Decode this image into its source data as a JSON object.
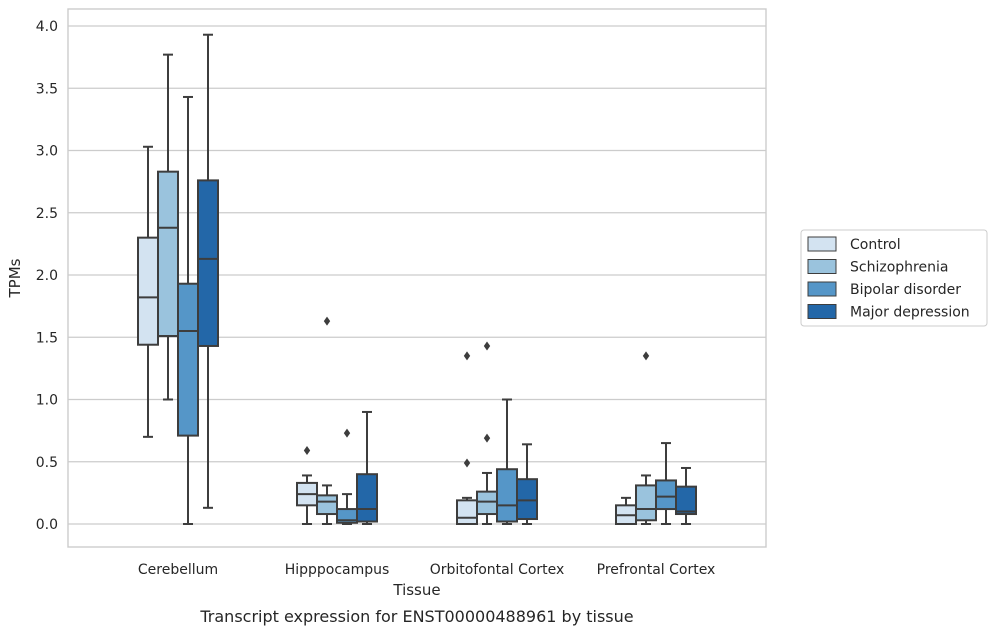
{
  "chart_data": {
    "type": "box",
    "title": "Transcript expression for ENST00000488961 by tissue",
    "xlabel": "Tissue",
    "ylabel": "TPMs",
    "ylim": [
      -0.19,
      4.12
    ],
    "yticks": [
      "0.0",
      "0.5",
      "1.0",
      "1.5",
      "2.0",
      "2.5",
      "3.0",
      "3.5",
      "4.0"
    ],
    "categories": [
      "Cerebellum",
      "Hipppocampus",
      "Orbitofontal Cortex",
      "Prefrontal Cortex"
    ],
    "grid": "horizontal",
    "legend_position": "right",
    "series": [
      {
        "name": "Control",
        "color": "#d3e3f1",
        "boxes": [
          {
            "min": 0.7,
            "q1": 1.44,
            "median": 1.82,
            "q3": 2.3,
            "max": 3.03,
            "outliers": []
          },
          {
            "min": 0.0,
            "q1": 0.15,
            "median": 0.24,
            "q3": 0.33,
            "max": 0.39,
            "outliers": [
              0.59
            ]
          },
          {
            "min": 0.0,
            "q1": 0.0,
            "median": 0.05,
            "q3": 0.19,
            "max": 0.21,
            "outliers": [
              0.49,
              1.35
            ]
          },
          {
            "min": 0.0,
            "q1": 0.0,
            "median": 0.07,
            "q3": 0.15,
            "max": 0.21,
            "outliers": []
          }
        ]
      },
      {
        "name": "Schizophrenia",
        "color": "#9ac3dd",
        "boxes": [
          {
            "min": 1.0,
            "q1": 1.51,
            "median": 2.38,
            "q3": 2.83,
            "max": 3.77,
            "outliers": []
          },
          {
            "min": 0.0,
            "q1": 0.08,
            "median": 0.18,
            "q3": 0.23,
            "max": 0.31,
            "outliers": [
              1.63
            ]
          },
          {
            "min": 0.0,
            "q1": 0.08,
            "median": 0.18,
            "q3": 0.26,
            "max": 0.41,
            "outliers": [
              0.69,
              1.43
            ]
          },
          {
            "min": 0.0,
            "q1": 0.03,
            "median": 0.12,
            "q3": 0.31,
            "max": 0.39,
            "outliers": [
              1.35
            ]
          }
        ]
      },
      {
        "name": "Bipolar disorder",
        "color": "#5596c8",
        "boxes": [
          {
            "min": 0.0,
            "q1": 0.71,
            "median": 1.55,
            "q3": 1.93,
            "max": 3.43,
            "outliers": []
          },
          {
            "min": 0.0,
            "q1": 0.01,
            "median": 0.03,
            "q3": 0.12,
            "max": 0.24,
            "outliers": [
              0.73
            ]
          },
          {
            "min": 0.0,
            "q1": 0.02,
            "median": 0.15,
            "q3": 0.44,
            "max": 1.0,
            "outliers": []
          },
          {
            "min": 0.0,
            "q1": 0.12,
            "median": 0.22,
            "q3": 0.35,
            "max": 0.65,
            "outliers": []
          }
        ]
      },
      {
        "name": "Major depression",
        "color": "#2367a8",
        "boxes": [
          {
            "min": 0.13,
            "q1": 1.43,
            "median": 2.13,
            "q3": 2.76,
            "max": 3.93,
            "outliers": []
          },
          {
            "min": 0.0,
            "q1": 0.02,
            "median": 0.12,
            "q3": 0.4,
            "max": 0.9,
            "outliers": []
          },
          {
            "min": 0.0,
            "q1": 0.04,
            "median": 0.19,
            "q3": 0.36,
            "max": 0.64,
            "outliers": []
          },
          {
            "min": 0.0,
            "q1": 0.08,
            "median": 0.1,
            "q3": 0.3,
            "max": 0.45,
            "outliers": []
          }
        ]
      }
    ]
  }
}
